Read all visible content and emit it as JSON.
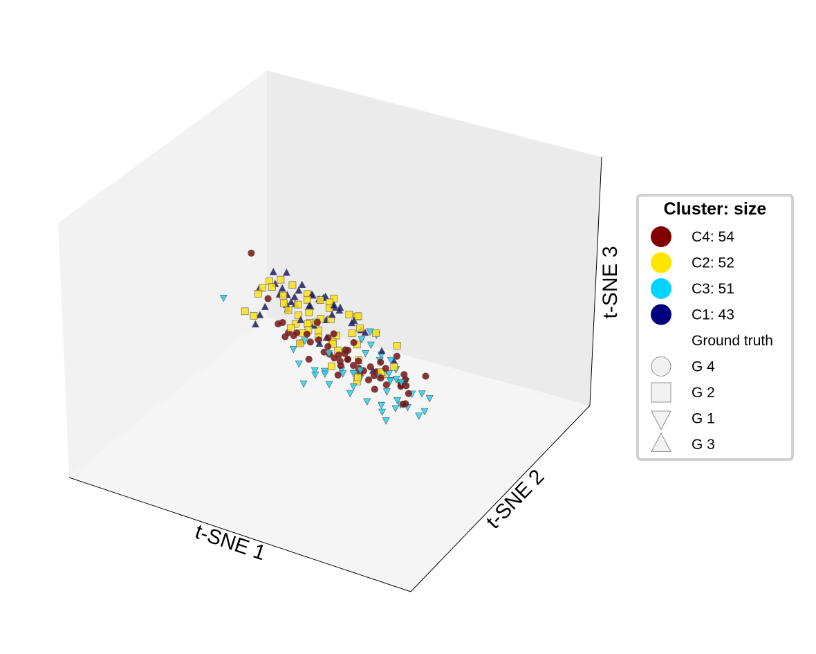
{
  "chart_data": {
    "type": "scatter",
    "projection": "3d",
    "title": "",
    "xlabel": "t-SNE 1",
    "ylabel": "t-SNE 2",
    "zlabel": "t-SNE 3",
    "xlim": [
      -10,
      10
    ],
    "ylim": [
      -10,
      10
    ],
    "zlim": [
      -10,
      10
    ],
    "grid": false,
    "legend": {
      "title": "Cluster: size",
      "placement": "right",
      "entries": [
        {
          "label": "C4: 54",
          "color": "#800000",
          "marker": "circle"
        },
        {
          "label": "C2: 52",
          "color": "#ffe500",
          "marker": "circle"
        },
        {
          "label": "C3: 51",
          "color": "#00d5ff",
          "marker": "circle"
        },
        {
          "label": "C1: 43",
          "color": "#00007f",
          "marker": "circle"
        },
        {
          "label": "Ground truth",
          "color": "none",
          "marker": "none"
        },
        {
          "label": "G 4",
          "color": "#f2f2f2",
          "marker": "circle"
        },
        {
          "label": "G 2",
          "color": "#f2f2f2",
          "marker": "square"
        },
        {
          "label": "G 1",
          "color": "#f2f2f2",
          "marker": "triangle-down"
        },
        {
          "label": "G 3",
          "color": "#f2f2f2",
          "marker": "triangle-up"
        }
      ]
    },
    "clusters": {
      "C1": {
        "color": "#1a1a72",
        "marker": "triangle-up"
      },
      "C2": {
        "color": "#ffe01a",
        "marker": "square"
      },
      "C3": {
        "color": "#22d2f0",
        "marker": "triangle-down"
      },
      "C4": {
        "color": "#7a1010",
        "marker": "circle"
      }
    },
    "points": {
      "C4": [
        [
          -6.9,
          2.0,
          5.6
        ],
        [
          -6.2,
          0.9,
          1.5
        ],
        [
          -5.8,
          0.2,
          -0.8
        ],
        [
          -5.3,
          -0.4,
          -1.6
        ],
        [
          -4.6,
          -1.7,
          -1.9
        ],
        [
          -4.1,
          -2.3,
          -0.9
        ],
        [
          -3.8,
          -0.1,
          -2.0
        ],
        [
          -3.5,
          0.9,
          -1.0
        ],
        [
          -4.0,
          1.6,
          0.2
        ],
        [
          -2.9,
          -1.2,
          -1.8
        ],
        [
          -2.6,
          -1.9,
          -2.5
        ],
        [
          -2.5,
          -3.2,
          -4.5
        ],
        [
          -2.2,
          0.6,
          -2.8
        ],
        [
          -1.6,
          -1.5,
          -1.0
        ],
        [
          -1.5,
          -2.6,
          -3.0
        ],
        [
          -0.9,
          0.3,
          -1.9
        ],
        [
          -0.7,
          -1.1,
          -2.5
        ],
        [
          -0.6,
          -2.6,
          -3.8
        ],
        [
          -0.3,
          -0.6,
          -4.0
        ],
        [
          -0.1,
          -3.2,
          -4.3
        ],
        [
          0.3,
          -1.7,
          -1.3
        ],
        [
          0.4,
          -2.1,
          -3.0
        ],
        [
          0.7,
          -3.5,
          -4.6
        ],
        [
          1.0,
          -0.3,
          -2.2
        ],
        [
          1.2,
          -1.3,
          -3.2
        ],
        [
          1.6,
          -3.3,
          -4.5
        ],
        [
          1.8,
          -0.8,
          -3.4
        ],
        [
          2.3,
          -1.9,
          -4.9
        ],
        [
          2.5,
          -2.9,
          -3.3
        ],
        [
          2.8,
          -4.5,
          -6.8
        ],
        [
          3.2,
          -1.6,
          -2.2
        ],
        [
          3.6,
          -3.4,
          -4.7
        ],
        [
          3.9,
          -3.6,
          -6.2
        ],
        [
          4.4,
          -2.6,
          -4.1
        ],
        [
          4.8,
          -3.0,
          -4.9
        ],
        [
          5.4,
          -2.1,
          -3.8
        ],
        [
          6.0,
          -1.4,
          -2.9
        ],
        [
          6.4,
          -3.2,
          -3.0
        ],
        [
          7.1,
          -0.1,
          -1.8
        ],
        [
          7.6,
          1.2,
          0.3
        ],
        [
          -5.0,
          -1.0,
          -1.7
        ],
        [
          -2.0,
          -1.3,
          -1.4
        ],
        [
          -1.0,
          -0.4,
          -2.3
        ],
        [
          0.1,
          -1.0,
          -1.8
        ],
        [
          1.5,
          0.2,
          -1.9
        ],
        [
          2.0,
          -2.4,
          -3.6
        ],
        [
          -3.2,
          -0.6,
          -1.9
        ],
        [
          -4.5,
          0.8,
          -1.4
        ],
        [
          3.0,
          -0.5,
          -3.5
        ],
        [
          -1.8,
          -2.4,
          -3.7
        ],
        [
          0.9,
          -2.9,
          -3.6
        ],
        [
          -2.8,
          -2.8,
          -3.8
        ],
        [
          4.2,
          -1.2,
          -3.8
        ],
        [
          -0.4,
          -1.8,
          -2.2
        ]
      ],
      "C2": [
        [
          -7.8,
          -1.2,
          1.5
        ],
        [
          -7.5,
          1.1,
          -0.3
        ],
        [
          -6.9,
          2.7,
          0.7
        ],
        [
          -6.1,
          -1.5,
          -1.7
        ],
        [
          -5.9,
          2.3,
          2.4
        ],
        [
          -5.4,
          -0.5,
          0.3
        ],
        [
          -5.1,
          1.9,
          3.6
        ],
        [
          -4.6,
          0.9,
          2.2
        ],
        [
          -4.2,
          1.6,
          3.9
        ],
        [
          -3.8,
          0.4,
          -0.2
        ],
        [
          -3.4,
          -0.6,
          -0.9
        ],
        [
          -3.0,
          2.5,
          2.4
        ],
        [
          -2.6,
          1.4,
          2.1
        ],
        [
          -2.2,
          -0.2,
          0.2
        ],
        [
          -1.8,
          1.0,
          1.5
        ],
        [
          -1.5,
          -1.3,
          -1.8
        ],
        [
          -1.2,
          0.6,
          0.0
        ],
        [
          -0.8,
          2.2,
          1.1
        ],
        [
          -0.5,
          -0.1,
          -1.0
        ],
        [
          -0.2,
          1.4,
          1.5
        ],
        [
          0.2,
          3.0,
          1.7
        ],
        [
          0.6,
          0.5,
          0.0
        ],
        [
          1.1,
          1.8,
          2.9
        ],
        [
          1.5,
          -0.8,
          -0.9
        ],
        [
          2.0,
          2.6,
          2.4
        ],
        [
          2.5,
          0.8,
          0.8
        ],
        [
          3.2,
          4.0,
          4.6
        ],
        [
          3.9,
          1.4,
          1.8
        ],
        [
          4.6,
          2.3,
          3.3
        ],
        [
          5.5,
          5.9,
          6.1
        ],
        [
          6.2,
          4.1,
          4.2
        ],
        [
          6.7,
          5.5,
          4.9
        ],
        [
          7.3,
          3.2,
          2.8
        ],
        [
          7.9,
          1.5,
          1.4
        ],
        [
          -2.9,
          -2.6,
          -4.5
        ],
        [
          -1.0,
          -3.5,
          -5.2
        ],
        [
          0.8,
          2.7,
          0.5
        ],
        [
          2.3,
          -2.6,
          -3.6
        ],
        [
          5.0,
          -1.2,
          -2.0
        ],
        [
          -6.4,
          -2.8,
          -3.5
        ],
        [
          -4.3,
          -0.9,
          -1.5
        ],
        [
          -0.9,
          -3.3,
          -5.5
        ],
        [
          -3.0,
          0.9,
          0.9
        ],
        [
          1.2,
          -1.3,
          -2.5
        ],
        [
          3.6,
          -1.4,
          -3.1
        ],
        [
          -0.6,
          -0.9,
          -2.0
        ],
        [
          -2.2,
          2.4,
          4.2
        ],
        [
          -1.4,
          1.6,
          2.9
        ],
        [
          0.1,
          0.4,
          -0.7
        ],
        [
          -4.1,
          3.7,
          3.8
        ],
        [
          0.9,
          4.0,
          4.7
        ],
        [
          -1.0,
          0.6,
          2.7
        ]
      ],
      "C3": [
        [
          -7.7,
          4.2,
          2.1
        ],
        [
          -6.6,
          -2.3,
          -3.9
        ],
        [
          -6.0,
          -2.8,
          -6.9
        ],
        [
          -5.5,
          -4.6,
          -6.4
        ],
        [
          -4.8,
          -2.8,
          -5.8
        ],
        [
          -4.0,
          -3.5,
          -6.6
        ],
        [
          -3.4,
          -1.3,
          -4.6
        ],
        [
          -2.6,
          -2.0,
          -3.1
        ],
        [
          -2.0,
          -3.7,
          -6.9
        ],
        [
          -1.3,
          -6.4,
          -8.5
        ],
        [
          -0.7,
          -4.2,
          -7.4
        ],
        [
          -0.3,
          -7.1,
          -8.0
        ],
        [
          0.3,
          -2.4,
          -4.6
        ],
        [
          0.8,
          -4.7,
          -8.8
        ],
        [
          1.4,
          -3.2,
          -4.4
        ],
        [
          1.9,
          -4.6,
          -7.4
        ],
        [
          2.5,
          -3.4,
          -4.5
        ],
        [
          3.0,
          -4.0,
          -6.6
        ],
        [
          3.6,
          -2.1,
          -3.2
        ],
        [
          4.1,
          -1.8,
          -1.8
        ],
        [
          4.7,
          -3.0,
          -6.1
        ],
        [
          5.3,
          -1.1,
          -2.1
        ],
        [
          5.8,
          1.2,
          -0.5
        ],
        [
          6.4,
          -1.7,
          -4.1
        ],
        [
          6.9,
          -0.5,
          -2.5
        ],
        [
          7.2,
          2.5,
          0.7
        ],
        [
          7.8,
          1.2,
          -1.9
        ],
        [
          8.2,
          -1.2,
          -5.0
        ],
        [
          8.8,
          4.7,
          3.5
        ],
        [
          9.3,
          -0.6,
          -3.4
        ],
        [
          -5.9,
          -2.8,
          -3.1
        ],
        [
          -3.8,
          -2.8,
          -5.2
        ],
        [
          -1.5,
          -4.3,
          -4.9
        ],
        [
          0.6,
          -5.0,
          -6.4
        ],
        [
          2.8,
          -4.3,
          -4.8
        ],
        [
          4.4,
          0.8,
          1.5
        ],
        [
          6.1,
          -0.3,
          -2.5
        ],
        [
          -0.8,
          -1.5,
          -3.9
        ],
        [
          1.1,
          -0.9,
          -3.5
        ],
        [
          3.3,
          -2.6,
          -4.0
        ],
        [
          -2.5,
          -4.6,
          -6.7
        ],
        [
          0.1,
          -1.9,
          -4.1
        ],
        [
          2.2,
          -1.0,
          -1.5
        ],
        [
          -4.4,
          -0.6,
          -4.1
        ],
        [
          5.4,
          -3.5,
          -6.8
        ],
        [
          7.5,
          2.6,
          -1.0
        ],
        [
          -1.9,
          -2.8,
          -4.9
        ],
        [
          0.5,
          -4.6,
          -8.1
        ],
        [
          3.9,
          1.2,
          0.8
        ],
        [
          6.5,
          2.9,
          1.5
        ],
        [
          8.5,
          -0.6,
          -3.2
        ]
      ],
      "C1": [
        [
          -7.8,
          0.6,
          -1.3
        ],
        [
          -6.0,
          2.0,
          0.4
        ],
        [
          -4.5,
          3.0,
          1.8
        ],
        [
          -3.4,
          4.8,
          4.2
        ],
        [
          -2.8,
          3.2,
          3.4
        ],
        [
          -2.2,
          4.3,
          4.8
        ],
        [
          -1.6,
          2.8,
          3.4
        ],
        [
          -1.0,
          3.8,
          3.4
        ],
        [
          -0.4,
          5.4,
          5.2
        ],
        [
          0.1,
          6.9,
          7.2
        ],
        [
          0.6,
          5.0,
          4.0
        ],
        [
          1.1,
          6.5,
          7.3
        ],
        [
          1.6,
          4.6,
          3.9
        ],
        [
          2.1,
          3.2,
          2.5
        ],
        [
          2.7,
          5.3,
          5.4
        ],
        [
          3.3,
          7.1,
          7.0
        ],
        [
          3.8,
          4.3,
          4.6
        ],
        [
          4.3,
          2.7,
          2.7
        ],
        [
          4.8,
          6.1,
          6.1
        ],
        [
          5.3,
          3.5,
          3.4
        ],
        [
          5.9,
          6.3,
          5.5
        ],
        [
          6.6,
          4.1,
          3.1
        ],
        [
          7.2,
          1.1,
          -0.3
        ],
        [
          -4.6,
          -1.0,
          -0.5
        ],
        [
          -3.9,
          1.2,
          2.5
        ],
        [
          -2.9,
          2.2,
          1.8
        ],
        [
          -2.0,
          0.3,
          0.1
        ],
        [
          -1.2,
          1.6,
          2.4
        ],
        [
          -0.5,
          2.2,
          2.7
        ],
        [
          0.4,
          3.0,
          4.2
        ],
        [
          1.3,
          1.5,
          3.1
        ],
        [
          2.2,
          4.1,
          4.6
        ],
        [
          3.1,
          2.8,
          3.5
        ],
        [
          4.0,
          5.5,
          5.6
        ],
        [
          5.0,
          4.7,
          4.8
        ],
        [
          -3.3,
          -1.7,
          -2.4
        ],
        [
          -1.7,
          -0.8,
          -1.2
        ],
        [
          0.7,
          1.1,
          2.0
        ],
        [
          2.9,
          -1.1,
          -2.9
        ],
        [
          6.2,
          1.4,
          0.4
        ],
        [
          1.7,
          5.8,
          5.7
        ],
        [
          -0.8,
          4.5,
          3.4
        ],
        [
          3.5,
          0.4,
          1.0
        ]
      ]
    }
  }
}
